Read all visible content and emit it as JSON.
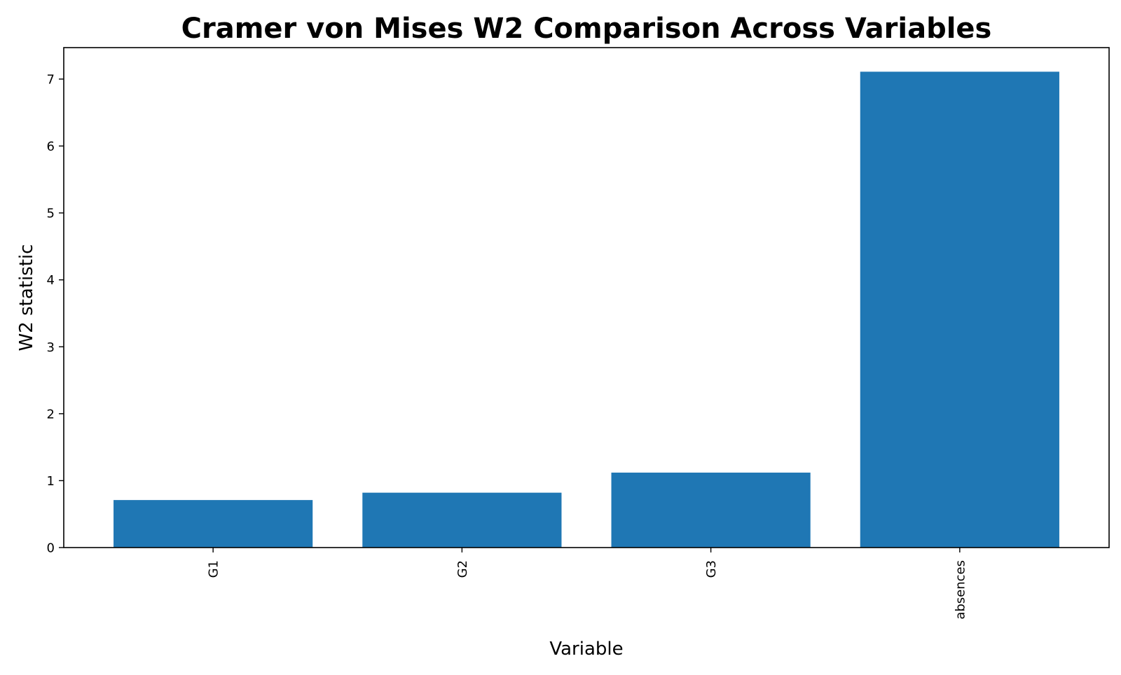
{
  "chart_data": {
    "type": "bar",
    "title": "Cramer von Mises W2 Comparison Across Variables",
    "xlabel": "Variable",
    "ylabel": "W2 statistic",
    "categories": [
      "G1",
      "G2",
      "G3",
      "absences"
    ],
    "values": [
      0.71,
      0.82,
      1.12,
      7.11
    ],
    "ylim": [
      0,
      7.47
    ],
    "yticks": [
      0,
      1,
      2,
      3,
      4,
      5,
      6,
      7
    ],
    "grid": false,
    "legend": "none",
    "bar_color": "#1f77b4"
  }
}
